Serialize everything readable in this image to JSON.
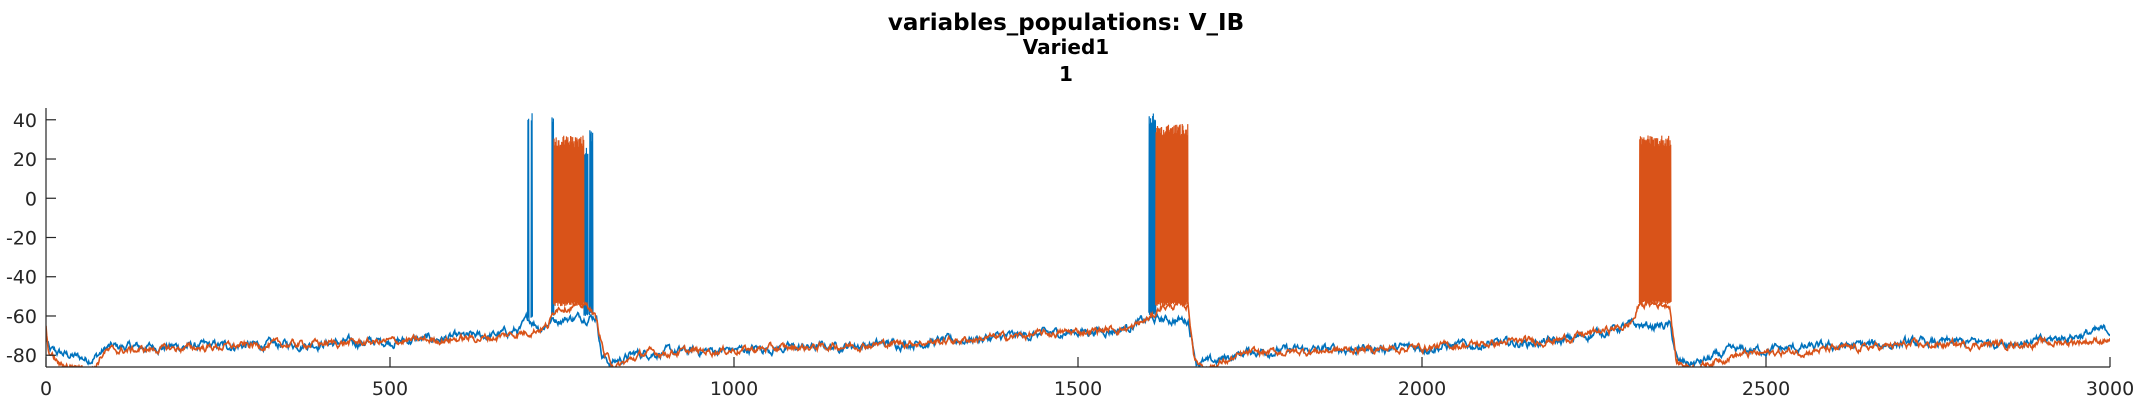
{
  "chart_data": {
    "type": "line",
    "title": "variables_populations: V_IB",
    "subtitle": "Varied1",
    "subtitle2": "1",
    "xlabel": "",
    "ylabel": "",
    "xlim": [
      0,
      3000
    ],
    "ylim": [
      -86,
      46
    ],
    "xticks": [
      0,
      500,
      1000,
      1500,
      2000,
      2500,
      3000
    ],
    "yticks": [
      -80,
      -60,
      -40,
      -20,
      0,
      20,
      40
    ],
    "grid": false,
    "legend": "none",
    "colors": [
      "#0072BD",
      "#D95319"
    ],
    "series": [
      {
        "baseline": [
          [
            0,
            -70
          ],
          [
            5,
            -78
          ],
          [
            60,
            -82
          ],
          [
            75,
            -80
          ],
          [
            90,
            -76
          ],
          [
            300,
            -75
          ],
          [
            500,
            -73
          ],
          [
            650,
            -70
          ],
          [
            690,
            -67
          ],
          [
            700,
            -62
          ],
          [
            705,
            -62
          ],
          [
            720,
            -66
          ],
          [
            735,
            -62
          ],
          [
            790,
            -60
          ],
          [
            800,
            -60
          ],
          [
            808,
            -80
          ],
          [
            820,
            -84
          ],
          [
            860,
            -79
          ],
          [
            1100,
            -76
          ],
          [
            1300,
            -73
          ],
          [
            1500,
            -68
          ],
          [
            1560,
            -67
          ],
          [
            1600,
            -62
          ],
          [
            1660,
            -62
          ],
          [
            1672,
            -83
          ],
          [
            1690,
            -84
          ],
          [
            1750,
            -78
          ],
          [
            2000,
            -76
          ],
          [
            2200,
            -73
          ],
          [
            2300,
            -65
          ],
          [
            2320,
            -65
          ],
          [
            2360,
            -65
          ],
          [
            2372,
            -84
          ],
          [
            2400,
            -84
          ],
          [
            2450,
            -78
          ],
          [
            2700,
            -74
          ],
          [
            2900,
            -73
          ],
          [
            3000,
            -67
          ]
        ],
        "noise": 3,
        "bursts": [
          {
            "start": 700,
            "end": 702,
            "top": 44,
            "bottom": -62
          },
          {
            "start": 705,
            "end": 707,
            "top": 44,
            "bottom": -62
          },
          {
            "start": 735,
            "end": 738,
            "top": 42,
            "bottom": -60
          },
          {
            "start": 782,
            "end": 788,
            "top": 28,
            "bottom": -60
          },
          {
            "start": 790,
            "end": 795,
            "top": 35,
            "bottom": -60
          },
          {
            "start": 1603,
            "end": 1613,
            "top": 44,
            "bottom": -60
          }
        ]
      },
      {
        "baseline": [
          [
            0,
            -66
          ],
          [
            3,
            -78
          ],
          [
            20,
            -85
          ],
          [
            70,
            -86
          ],
          [
            85,
            -78
          ],
          [
            300,
            -75
          ],
          [
            500,
            -73
          ],
          [
            650,
            -71
          ],
          [
            700,
            -68
          ],
          [
            730,
            -65
          ],
          [
            742,
            -55
          ],
          [
            790,
            -55
          ],
          [
            800,
            -62
          ],
          [
            812,
            -80
          ],
          [
            830,
            -86
          ],
          [
            870,
            -79
          ],
          [
            1100,
            -76
          ],
          [
            1300,
            -73
          ],
          [
            1500,
            -68
          ],
          [
            1580,
            -66
          ],
          [
            1610,
            -60
          ],
          [
            1620,
            -55
          ],
          [
            1660,
            -55
          ],
          [
            1670,
            -83
          ],
          [
            1690,
            -86
          ],
          [
            1750,
            -79
          ],
          [
            2000,
            -76
          ],
          [
            2200,
            -72
          ],
          [
            2300,
            -65
          ],
          [
            2310,
            -60
          ],
          [
            2316,
            -54
          ],
          [
            2360,
            -54
          ],
          [
            2370,
            -84
          ],
          [
            2400,
            -86
          ],
          [
            2450,
            -80
          ],
          [
            2700,
            -75
          ],
          [
            2900,
            -74
          ],
          [
            3000,
            -72
          ]
        ],
        "noise": 2.5,
        "bursts": [
          {
            "start": 738,
            "end": 782,
            "top": 32,
            "bottom": -55
          },
          {
            "start": 1613,
            "end": 1660,
            "top": 38,
            "bottom": -55
          },
          {
            "start": 2316,
            "end": 2362,
            "top": 32,
            "bottom": -54
          }
        ]
      }
    ]
  }
}
